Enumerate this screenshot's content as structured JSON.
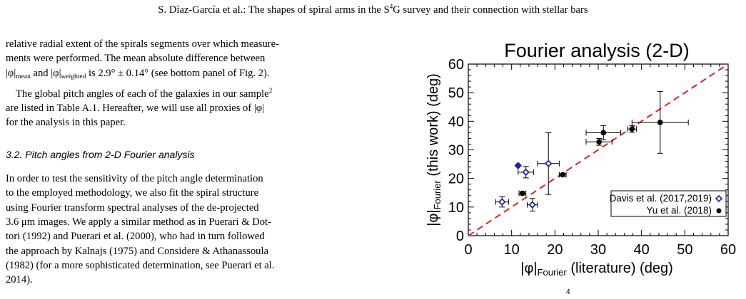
{
  "header": {
    "authors": "S. Díaz-García et al.: The shapes of spiral arms in the S",
    "sup": "4",
    "rest": "G survey and their connection with stellar bars"
  },
  "text": {
    "p1": "relative radial extent of the spirals segments over which measurements were performed. The mean absolute difference between |φ|mean and |φ|weighted is 2.9° ± 0.14° (see bottom panel of Fig. 2).",
    "p1_a": "relative radial extent of the spirals segments over which measure-",
    "p1_b": "ments were performed. The mean absolute difference between",
    "p1_c_1": "|φ|",
    "p1_c_sub1": "mean",
    "p1_c_2": " and |φ|",
    "p1_c_sub2": "weighted",
    "p1_c_3": " is 2.9° ± 0.14° (see bottom panel of Fig. 2).",
    "p2_a": "The global pitch angles of each of the galaxies in our sample",
    "p2_sup": "2",
    "p2_b": "are listed in Table A.1. Hereafter, we will use all proxies of |φ|",
    "p2_c": "for the analysis in this paper.",
    "section_title": "3.2. Pitch angles from 2-D Fourier analysis",
    "p3_lines": [
      "In order to test the sensitivity of the pitch angle determination",
      "to the employed methodology, we also fit the spiral structure",
      "using Fourier transform spectral analyses of the de-projected",
      "3.6 μm images. We apply a similar method as in Puerari & Dot-",
      "tori (1992) and Puerari et al. (2000), who had in turn followed",
      "the approach by Kalnajs (1975) and Considere & Athanassoula",
      "(1982) (for a more sophisticated determination, see Puerari et al.",
      "2014)."
    ],
    "fig_fragment": "4"
  },
  "chart_data": {
    "type": "scatter",
    "title": "Fourier analysis (2-D)",
    "xlabel_main": "|φ|",
    "xlabel_sub": "Fourier",
    "xlabel_rest": " (literature) (deg)",
    "ylabel_main": "|φ|",
    "ylabel_sub": "Fourier",
    "ylabel_rest": " (this work) (deg)",
    "xlim": [
      0,
      60
    ],
    "ylim": [
      0,
      60
    ],
    "xticks": [
      0,
      10,
      20,
      30,
      40,
      50,
      60
    ],
    "yticks": [
      0,
      10,
      20,
      30,
      40,
      50,
      60
    ],
    "reference_line": {
      "style": "dashed",
      "color": "#e8201a",
      "from": [
        0,
        0
      ],
      "to": [
        60,
        60
      ]
    },
    "legend": {
      "position": "bottom-right",
      "entries": [
        {
          "label": "Davis et al. (2017,2019)",
          "marker": "open-diamond",
          "color": "#1f1fb4"
        },
        {
          "label": "Yu et al. (2018)",
          "marker": "filled-circle",
          "color": "#000000"
        }
      ]
    },
    "series": [
      {
        "name": "Davis et al. (2017,2019)",
        "marker": "open-diamond",
        "color": "#1f1fb4",
        "points": [
          {
            "x": 7.8,
            "y": 11.8,
            "xerr": 1.5,
            "yerr": 1.8
          },
          {
            "x": 11.5,
            "y": 24.5,
            "xerr": 0,
            "yerr": 0
          },
          {
            "x": 13.3,
            "y": 22.2,
            "xerr": 1.8,
            "yerr": 2.0
          },
          {
            "x": 14.8,
            "y": 10.8,
            "xerr": 1.2,
            "yerr": 2.2
          },
          {
            "x": 18.5,
            "y": 25.2,
            "xerr": 2.5,
            "yerr": 10.8
          }
        ]
      },
      {
        "name": "Yu et al. (2018)",
        "marker": "filled-circle",
        "color": "#000000",
        "points": [
          {
            "x": 12.5,
            "y": 14.8,
            "xerr": 0.8,
            "yerr": 0.6
          },
          {
            "x": 21.8,
            "y": 21.3,
            "xerr": 0.8,
            "yerr": 0.5
          },
          {
            "x": 30.2,
            "y": 32.8,
            "xerr": 3.0,
            "yerr": 1.2
          },
          {
            "x": 31.2,
            "y": 36.0,
            "xerr": 4.0,
            "yerr": 2.5
          },
          {
            "x": 37.8,
            "y": 37.3,
            "xerr": 1.0,
            "yerr": 1.2
          },
          {
            "x": 44.3,
            "y": 39.6,
            "xerr": 6.5,
            "yerr": 10.8
          }
        ]
      }
    ]
  }
}
